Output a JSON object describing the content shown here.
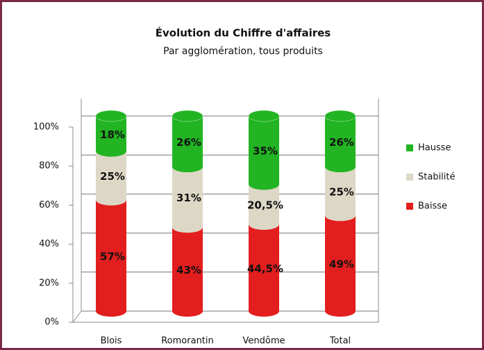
{
  "chart_data": {
    "type": "stacked_bar",
    "title": "Évolution du Chiffre d'affaires",
    "subtitle": "Par agglomération, tous produits",
    "categories": [
      "Blois",
      "Romorantin",
      "Vendôme",
      "Total"
    ],
    "series": [
      {
        "name": "Baisse",
        "color": "#e31e1e",
        "values": [
          57,
          43,
          44.5,
          49
        ],
        "value_labels": [
          "57%",
          "43%",
          "44,5%",
          "49%"
        ]
      },
      {
        "name": "Stabilité",
        "color": "#ddd8c6",
        "values": [
          25,
          31,
          20.5,
          25
        ],
        "value_labels": [
          "25%",
          "31%",
          "20,5%",
          "25%"
        ]
      },
      {
        "name": "Hausse",
        "color": "#22b422",
        "values": [
          18,
          26,
          35,
          26
        ],
        "value_labels": [
          "18%",
          "26%",
          "35%",
          "26%"
        ]
      }
    ],
    "ylim": [
      0,
      100
    ],
    "yticks": [
      {
        "value": 0,
        "label": "0%"
      },
      {
        "value": 20,
        "label": "20%"
      },
      {
        "value": 40,
        "label": "40%"
      },
      {
        "value": 60,
        "label": "60%"
      },
      {
        "value": 80,
        "label": "80%"
      },
      {
        "value": 100,
        "label": "100%"
      }
    ],
    "grid": true,
    "legend": "right"
  }
}
